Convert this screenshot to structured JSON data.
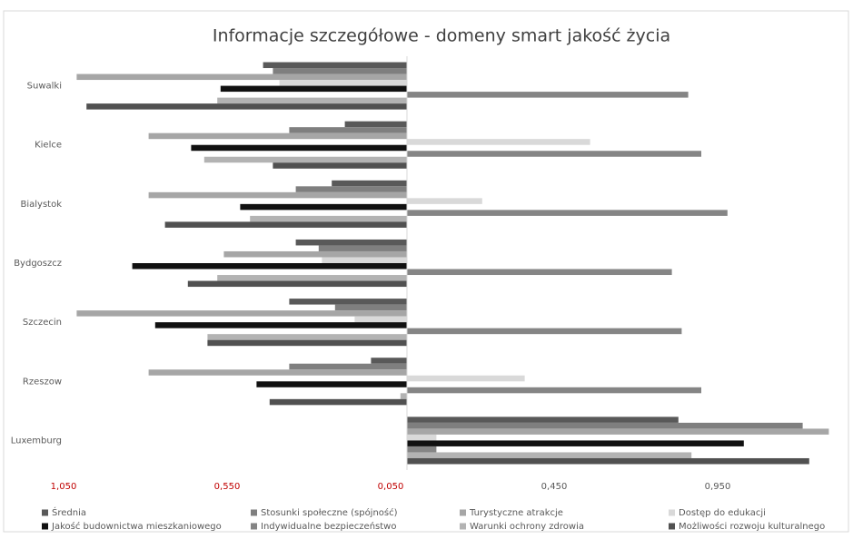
{
  "chart_data": {
    "type": "hbar",
    "title": "Informacje szczegółowe - domeny smart jakość życia",
    "categories": [
      "Suwalki",
      "Kielce",
      "Bialystok",
      "Bydgoszcz",
      "Szczecin",
      "Rzeszow",
      "Luxemburg"
    ],
    "series": [
      {
        "name": "Średnia",
        "color": "#595959",
        "values": [
          -0.44,
          -0.19,
          -0.23,
          -0.34,
          -0.36,
          -0.11,
          0.83
        ]
      },
      {
        "name": "Stosunki społeczne (spójność)",
        "color": "#7f7f7f",
        "values": [
          -0.41,
          -0.36,
          -0.34,
          -0.27,
          -0.22,
          -0.36,
          1.21
        ]
      },
      {
        "name": "Turystyczne atrakcje",
        "color": "#a6a6a6",
        "values": [
          -1.01,
          -0.79,
          -0.79,
          -0.56,
          -1.01,
          -0.79,
          1.29
        ]
      },
      {
        "name": "Dostęp do edukacji",
        "color": "#d9d9d9",
        "values": [
          -0.39,
          0.56,
          0.23,
          -0.26,
          -0.16,
          0.36,
          0.09
        ]
      },
      {
        "name": "Jakość budownictwa mieszkaniowego",
        "color": "#111111",
        "values": [
          -0.57,
          -0.66,
          -0.51,
          -0.84,
          -0.77,
          -0.46,
          1.03
        ]
      },
      {
        "name": "Indywidualne bezpieczeństwo",
        "color": "#858585",
        "values": [
          0.86,
          0.9,
          0.98,
          0.81,
          0.84,
          0.9,
          0.09
        ]
      },
      {
        "name": "Warunki ochrony zdrowia",
        "color": "#b3b3b3",
        "values": [
          -0.58,
          -0.62,
          -0.48,
          -0.58,
          -0.61,
          -0.02,
          0.87
        ]
      },
      {
        "name": "Możliwości rozwoju kulturalnego",
        "color": "#515151",
        "values": [
          -0.98,
          -0.41,
          -0.74,
          -0.67,
          -0.61,
          -0.42,
          1.23
        ]
      }
    ],
    "xlim": [
      -1.05,
      1.35
    ],
    "xticks": [
      {
        "value": -1.05,
        "label": "1,050"
      },
      {
        "value": -0.55,
        "label": "0,550"
      },
      {
        "value": -0.05,
        "label": "0,050"
      },
      {
        "value": 0.45,
        "label": "0,450"
      },
      {
        "value": 0.95,
        "label": "0,950"
      }
    ],
    "negative_tick_color": "#c00000",
    "legend": "bottom"
  }
}
